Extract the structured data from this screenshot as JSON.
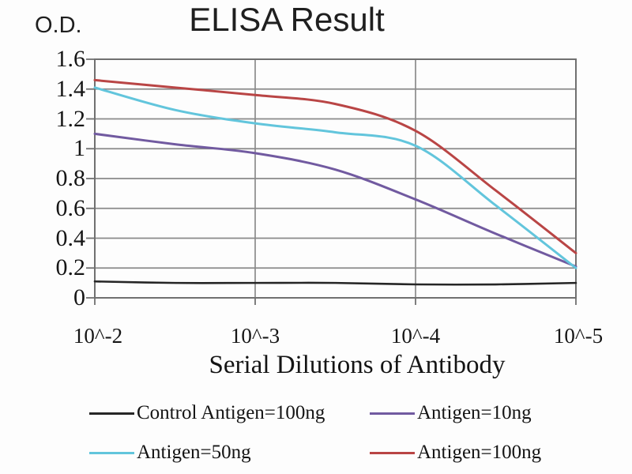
{
  "chart_data": {
    "type": "line",
    "title": "ELISA Result",
    "ylabel": "O.D.",
    "xlabel": "Serial Dilutions of Antibody",
    "x_tick_labels": [
      "10^-2",
      "10^-3",
      "10^-4",
      "10^-5"
    ],
    "y_tick_labels": [
      "1.6",
      "1.4",
      "1.2",
      "1",
      "0.8",
      "0.6",
      "0.4",
      "0.2",
      "0"
    ],
    "y_tick_values": [
      1.6,
      1.4,
      1.2,
      1,
      0.8,
      0.6,
      0.4,
      0.2,
      0
    ],
    "ylim": [
      0,
      1.6
    ],
    "x_log10": [
      -2,
      -2.5,
      -3,
      -3.5,
      -4,
      -4.5,
      -5
    ],
    "grid": true,
    "legend_position": "bottom",
    "series": [
      {
        "name": "Control Antigen=100ng",
        "color": "#262626",
        "width": 2.6,
        "values": [
          0.11,
          0.1,
          0.1,
          0.1,
          0.09,
          0.09,
          0.1
        ]
      },
      {
        "name": "Antigen=10ng",
        "color": "#715aa0",
        "width": 3,
        "values": [
          1.1,
          1.03,
          0.97,
          0.86,
          0.66,
          0.43,
          0.21
        ]
      },
      {
        "name": "Antigen=50ng",
        "color": "#62c5dc",
        "width": 3,
        "values": [
          1.41,
          1.26,
          1.17,
          1.11,
          1.02,
          0.62,
          0.2
        ]
      },
      {
        "name": "Antigen=100ng",
        "color": "#b94545",
        "width": 3,
        "values": [
          1.46,
          1.41,
          1.36,
          1.3,
          1.12,
          0.72,
          0.3
        ]
      }
    ],
    "colors": {
      "grid": "#8a8a8a",
      "axis": "#707070",
      "text": "#1c1c1c",
      "background": "#fdfdfd"
    }
  }
}
